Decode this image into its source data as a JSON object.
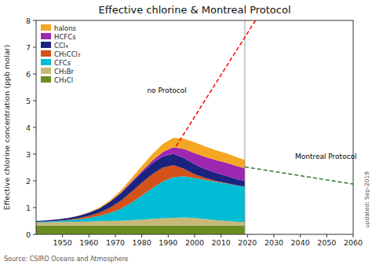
{
  "chart_data": {
    "type": "area",
    "stacked": true,
    "title": "Effective chlorine & Montreal Protocol",
    "ylabel": "Effective chlorine concentration (ppb molar)",
    "source": "Source: CSIRO Oceans and Atmosphere",
    "updated": "updated: Sep-2019",
    "xlim": [
      1940,
      2060
    ],
    "ylim": [
      0,
      8
    ],
    "xticks": [
      1950,
      1960,
      1970,
      1980,
      1990,
      2000,
      2010,
      2020,
      2030,
      2040,
      2050,
      2060
    ],
    "yticks": [
      0,
      1,
      2,
      3,
      4,
      5,
      6,
      7,
      8
    ],
    "grid": false,
    "legend": "upper left",
    "x": [
      1940,
      1944,
      1948,
      1952,
      1956,
      1960,
      1964,
      1968,
      1972,
      1976,
      1980,
      1984,
      1988,
      1992,
      1996,
      2000,
      2004,
      2008,
      2012,
      2016,
      2019
    ],
    "series": [
      {
        "name": "CH₃Cl",
        "color": "#6b8e23",
        "values": [
          0.33,
          0.33,
          0.33,
          0.33,
          0.33,
          0.33,
          0.33,
          0.33,
          0.33,
          0.33,
          0.33,
          0.33,
          0.33,
          0.33,
          0.33,
          0.33,
          0.33,
          0.33,
          0.33,
          0.33,
          0.33
        ]
      },
      {
        "name": "CH₃Br",
        "color": "#c8b878",
        "values": [
          0.12,
          0.12,
          0.13,
          0.13,
          0.14,
          0.15,
          0.16,
          0.17,
          0.18,
          0.2,
          0.22,
          0.25,
          0.27,
          0.29,
          0.3,
          0.28,
          0.24,
          0.2,
          0.17,
          0.14,
          0.13
        ]
      },
      {
        "name": "CFCs",
        "color": "#00bcd4",
        "values": [
          0.02,
          0.03,
          0.04,
          0.06,
          0.09,
          0.14,
          0.2,
          0.3,
          0.44,
          0.65,
          0.9,
          1.15,
          1.38,
          1.52,
          1.54,
          1.5,
          1.47,
          1.43,
          1.4,
          1.35,
          1.32
        ]
      },
      {
        "name": "CH₃CCl₃",
        "color": "#d4521a",
        "values": [
          0.0,
          0.0,
          0.01,
          0.02,
          0.04,
          0.07,
          0.12,
          0.2,
          0.3,
          0.4,
          0.48,
          0.52,
          0.52,
          0.45,
          0.28,
          0.14,
          0.07,
          0.04,
          0.02,
          0.01,
          0.01
        ]
      },
      {
        "name": "CCl₄",
        "color": "#1a237e",
        "values": [
          0.03,
          0.04,
          0.05,
          0.07,
          0.09,
          0.12,
          0.16,
          0.22,
          0.28,
          0.34,
          0.38,
          0.41,
          0.42,
          0.42,
          0.4,
          0.37,
          0.33,
          0.3,
          0.27,
          0.23,
          0.21
        ]
      },
      {
        "name": "HCFCs",
        "color": "#9c27b0",
        "values": [
          0.0,
          0.0,
          0.0,
          0.0,
          0.0,
          0.0,
          0.0,
          0.01,
          0.02,
          0.04,
          0.06,
          0.1,
          0.16,
          0.25,
          0.34,
          0.42,
          0.46,
          0.48,
          0.49,
          0.49,
          0.48
        ]
      },
      {
        "name": "halons",
        "color": "#f5a623",
        "values": [
          0.0,
          0.0,
          0.0,
          0.01,
          0.01,
          0.02,
          0.03,
          0.05,
          0.08,
          0.13,
          0.18,
          0.24,
          0.3,
          0.35,
          0.38,
          0.4,
          0.39,
          0.37,
          0.35,
          0.33,
          0.31
        ]
      }
    ],
    "reference_lines": [
      {
        "x": [
          1993,
          2023
        ],
        "values": [
          3.3,
          8.0
        ],
        "color": "red",
        "line_style": "dashed"
      },
      {
        "x": [
          2019,
          2060
        ],
        "values": [
          2.52,
          1.88
        ],
        "color": "#2e7d32",
        "line_style": "dashed"
      }
    ],
    "annotations": [
      {
        "text": "no Protocol",
        "x": 1982,
        "y": 5.3
      },
      {
        "text": "Montreal Protocol",
        "x": 2038,
        "y": 2.82
      }
    ],
    "hist_end": 2019
  }
}
